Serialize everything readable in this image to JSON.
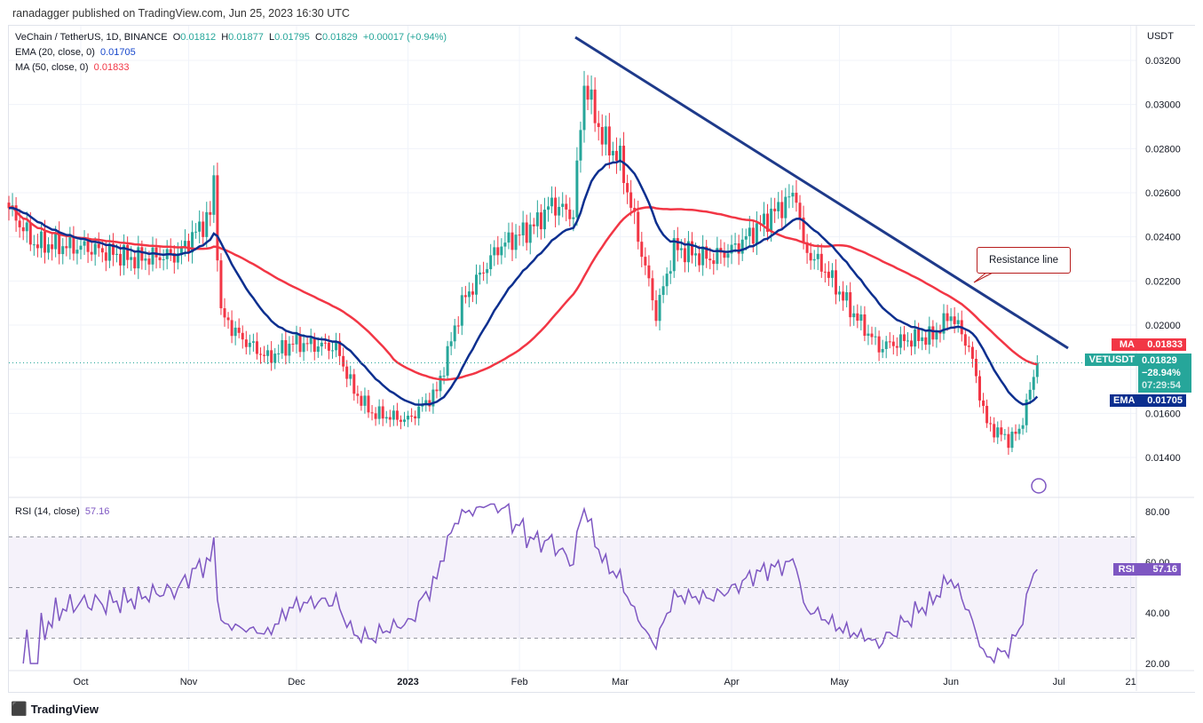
{
  "header": {
    "published": "ranadagger published on TradingView.com, Jun 25, 2023 16:30 UTC"
  },
  "legend": {
    "symbol": "VeChain / TetherUS, 1D, BINANCE",
    "o_label": "O",
    "o": "0.01812",
    "h_label": "H",
    "h": "0.01877",
    "l_label": "L",
    "l": "0.01795",
    "c_label": "C",
    "c": "0.01829",
    "change": "+0.00017 (+0.94%)",
    "ema_label": "EMA (20, close, 0)",
    "ema": "0.01705",
    "ma_label": "MA (50, close, 0)",
    "ma": "0.01833",
    "rsi_label": "RSI (14, close)",
    "rsi": "57.16"
  },
  "tags": {
    "ma_name": "MA",
    "ma_val": "0.01833",
    "sym": "VETUSDT",
    "price": "0.01829",
    "pct": "−28.94%",
    "countdown": "07:29:54",
    "ema_name": "EMA",
    "ema_val": "0.01705",
    "rsi_name": "RSI",
    "rsi_val": "57.16"
  },
  "colors": {
    "up": "#26a69a",
    "down": "#f23645",
    "ema": "#0c2f8f",
    "ma": "#f23645",
    "rsi": "#7e57c2",
    "trend": "#1e3a8a"
  },
  "footer": {
    "brand": "TradingView"
  },
  "chart_data": {
    "type": "candlestick",
    "title": "VeChain / TetherUS, 1D, BINANCE",
    "ylabel": "USDT",
    "ylim": [
      0.0132,
      0.0333
    ],
    "y_ticks": [
      "0.03200",
      "0.03000",
      "0.02800",
      "0.02600",
      "0.02400",
      "0.02200",
      "0.02000",
      "0.01800",
      "0.01600",
      "0.01400"
    ],
    "x_ticks": [
      {
        "label": "Oct",
        "day": 20
      },
      {
        "label": "Nov",
        "day": 50
      },
      {
        "label": "Dec",
        "day": 80
      },
      {
        "label": "2023",
        "day": 111
      },
      {
        "label": "Feb",
        "day": 142
      },
      {
        "label": "Mar",
        "day": 170
      },
      {
        "label": "Apr",
        "day": 201
      },
      {
        "label": "May",
        "day": 231
      },
      {
        "label": "Jun",
        "day": 262
      },
      {
        "label": "Jul",
        "day": 292
      },
      {
        "label": "21",
        "day": 312
      }
    ],
    "start_date": "2022-09-11",
    "close_keypoints": [
      [
        0,
        0.0253
      ],
      [
        7,
        0.0237
      ],
      [
        22,
        0.0235
      ],
      [
        35,
        0.023
      ],
      [
        47,
        0.0232
      ],
      [
        56,
        0.025
      ],
      [
        57,
        0.0265
      ],
      [
        59,
        0.0205
      ],
      [
        64,
        0.0195
      ],
      [
        72,
        0.0185
      ],
      [
        79,
        0.0192
      ],
      [
        91,
        0.019
      ],
      [
        96,
        0.017
      ],
      [
        101,
        0.016
      ],
      [
        111,
        0.0157
      ],
      [
        119,
        0.017
      ],
      [
        126,
        0.021
      ],
      [
        136,
        0.0235
      ],
      [
        146,
        0.0245
      ],
      [
        151,
        0.0255
      ],
      [
        157,
        0.025
      ],
      [
        160,
        0.031
      ],
      [
        165,
        0.0285
      ],
      [
        170,
        0.0275
      ],
      [
        175,
        0.024
      ],
      [
        180,
        0.0205
      ],
      [
        185,
        0.0235
      ],
      [
        195,
        0.023
      ],
      [
        202,
        0.0235
      ],
      [
        212,
        0.025
      ],
      [
        219,
        0.026
      ],
      [
        221,
        0.0235
      ],
      [
        227,
        0.0225
      ],
      [
        235,
        0.0205
      ],
      [
        242,
        0.019
      ],
      [
        249,
        0.0193
      ],
      [
        257,
        0.0195
      ],
      [
        262,
        0.0205
      ],
      [
        267,
        0.019
      ],
      [
        272,
        0.0155
      ],
      [
        278,
        0.0148
      ],
      [
        281,
        0.0152
      ],
      [
        284,
        0.017
      ],
      [
        286,
        0.01829
      ]
    ],
    "trendline": {
      "label": "Resistance line",
      "from": [
        159,
        0.0331
      ],
      "to": [
        294,
        0.0189
      ]
    },
    "rsi": {
      "ylim": [
        18,
        84
      ],
      "ticks": [
        "80.00",
        "60.00",
        "40.00",
        "20.00"
      ],
      "band": [
        30,
        70
      ],
      "last": 57.16
    }
  }
}
